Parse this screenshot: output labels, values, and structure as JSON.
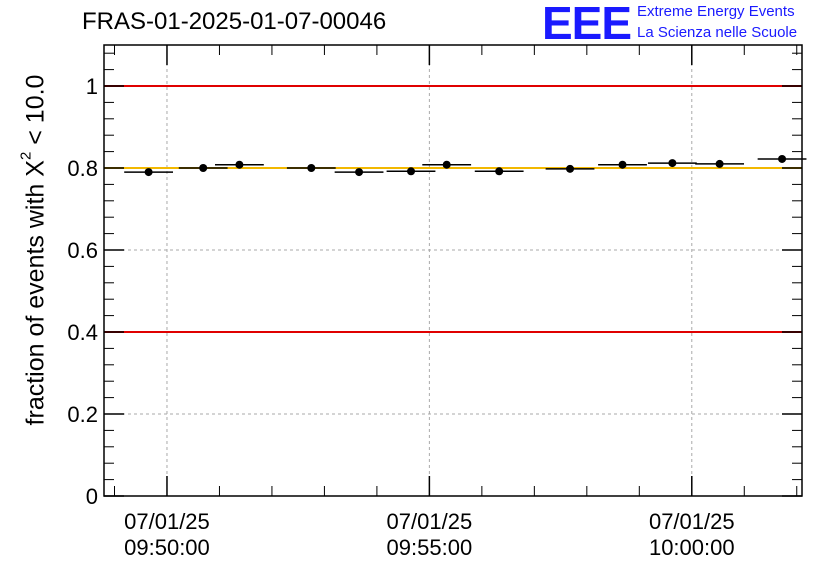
{
  "chart_data": {
    "type": "scatter",
    "title": "FRAS-01-2025-01-07-00046",
    "ylabel_prefix": "fraction of events with X",
    "ylabel_sup": "2",
    "ylabel_suffix": " < 10.0",
    "xlabel": "",
    "ylim": [
      0,
      1.1
    ],
    "y_ticks": [
      "0",
      "0.2",
      "0.4",
      "0.6",
      "0.8",
      "1"
    ],
    "y_tick_values": [
      0,
      0.2,
      0.4,
      0.6,
      0.8,
      1.0
    ],
    "x_range_minutes": [
      -1.2,
      12.1
    ],
    "x_tick_labels": [
      {
        "minute": 0,
        "date": "07/01/25",
        "time": "09:50:00"
      },
      {
        "minute": 5,
        "date": "07/01/25",
        "time": "09:55:00"
      },
      {
        "minute": 10,
        "date": "07/01/25",
        "time": "10:00:00"
      }
    ],
    "reference_lines": [
      {
        "y": 1.0,
        "color": "#e00000"
      },
      {
        "y": 0.4,
        "color": "#e00000"
      },
      {
        "y": 0.8,
        "color": "#f2b800"
      }
    ],
    "bin_width_minutes": 0.93,
    "series": [
      {
        "name": "fraction",
        "x": [
          -0.35,
          0.69,
          1.38,
          2.75,
          3.66,
          4.65,
          5.33,
          6.33,
          7.68,
          8.68,
          9.63,
          10.53,
          11.72
        ],
        "y": [
          0.79,
          0.8,
          0.808,
          0.8,
          0.79,
          0.792,
          0.808,
          0.792,
          0.798,
          0.808,
          0.812,
          0.81,
          0.822
        ]
      }
    ],
    "grid": true
  },
  "logo": {
    "mark": "EEE",
    "line1": "Extreme Energy Events",
    "line2": "La Scienza nelle Scuole"
  }
}
